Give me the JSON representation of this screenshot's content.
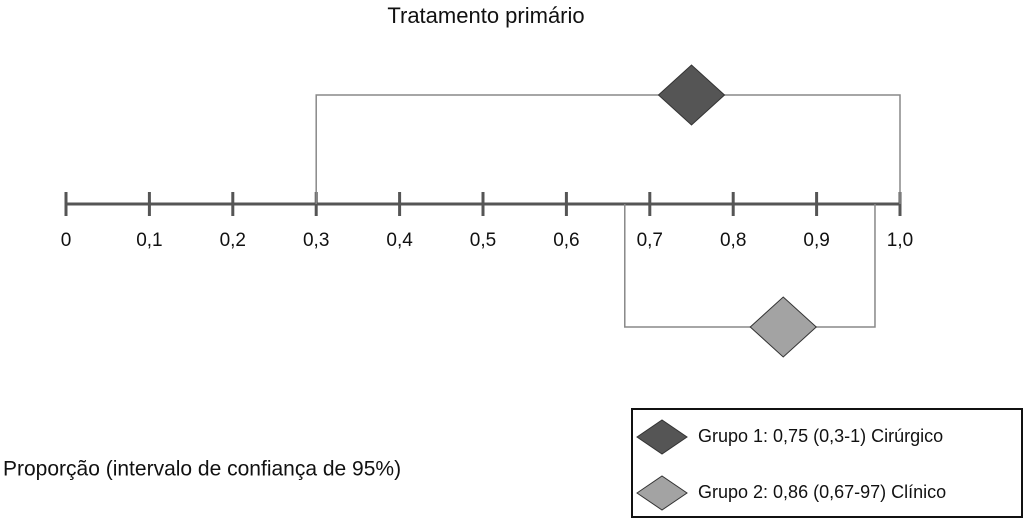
{
  "chart_data": {
    "type": "interval",
    "title": "Tratamento primário",
    "x_label": "Proporção (intervalo de confiança de 95%)",
    "xlim": [
      0,
      1
    ],
    "xticks": [
      0,
      {
        "value": 0.1,
        "label": "0,1"
      },
      {
        "value": 0.2,
        "label": "0,2"
      },
      {
        "value": 0.3,
        "label": "0,3"
      },
      {
        "value": 0.4,
        "label": "0,4"
      },
      {
        "value": 0.5,
        "label": "0,5"
      },
      {
        "value": 0.6,
        "label": "0,6"
      },
      {
        "value": 0.7,
        "label": "0,7"
      },
      {
        "value": 0.8,
        "label": "0,8"
      },
      {
        "value": 0.9,
        "label": "0,9"
      },
      {
        "value": 1,
        "label": "1,0"
      }
    ],
    "series": [
      {
        "name": "Grupo 1: 0,75 (0,3-1) Cirúrgico",
        "color": "#555555",
        "values": [
          0.75
        ],
        "lower": [
          0.3
        ],
        "upper": [
          1
        ]
      },
      {
        "name": "Grupo 2: 0,86 (0,67-97) Clínico",
        "color": "#a3a3a3",
        "values": [
          0.86
        ],
        "lower": [
          0.67
        ],
        "upper": [
          0.97
        ]
      }
    ]
  }
}
